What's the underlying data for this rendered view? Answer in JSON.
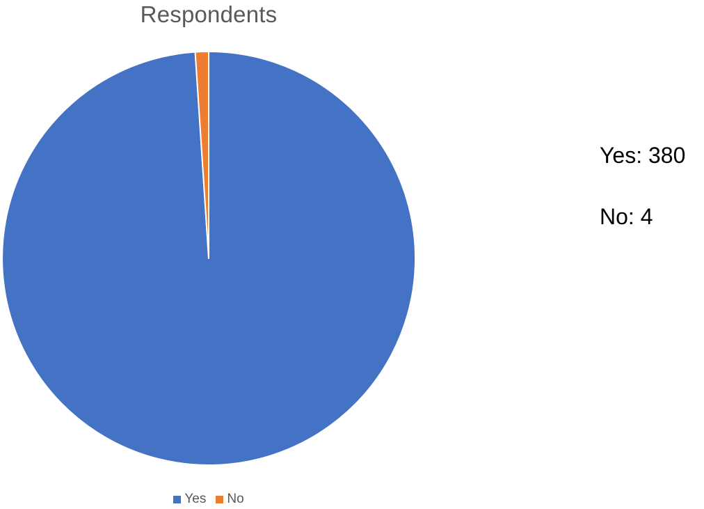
{
  "chart_data": {
    "type": "pie",
    "title": "Respondents",
    "categories": [
      "Yes",
      "No"
    ],
    "values": [
      380,
      4
    ],
    "colors": [
      "#4472C4",
      "#ED7D31"
    ],
    "legend_position": "bottom",
    "start_angle_deg": 0,
    "direction": "clockwise"
  },
  "annotations": {
    "yes_text": "Yes: 380",
    "no_text": "No: 4"
  }
}
